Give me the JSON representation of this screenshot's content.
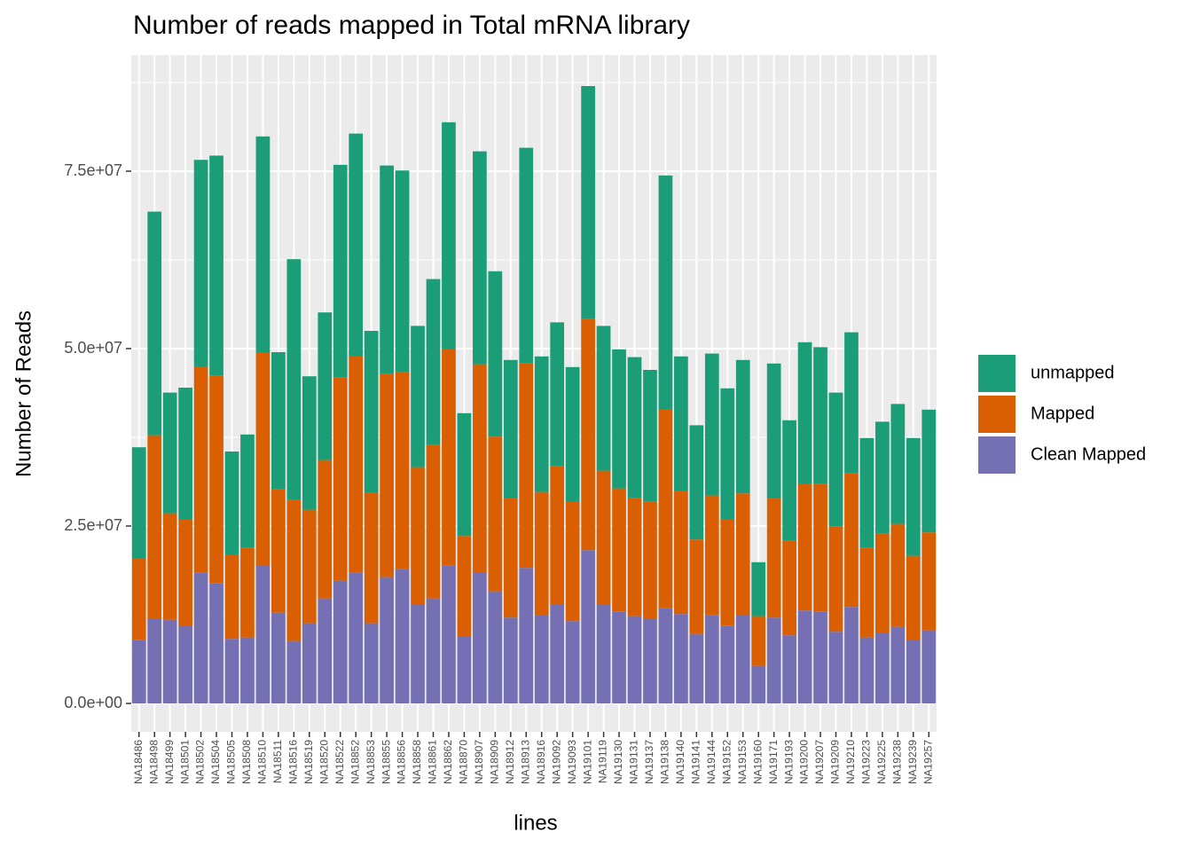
{
  "chart_data": {
    "type": "stacked_bar",
    "title": "Number of reads mapped in Total mRNA library",
    "x_label": "lines",
    "y_label": "Number of Reads",
    "categories": [
      "NA18486",
      "NA18498",
      "NA18499",
      "NA18501",
      "NA18502",
      "NA18504",
      "NA18505",
      "NA18508",
      "NA18510",
      "NA18511",
      "NA18516",
      "NA18519",
      "NA18520",
      "NA18522",
      "NA18852",
      "NA18853",
      "NA18855",
      "NA18856",
      "NA18858",
      "NA18861",
      "NA18862",
      "NA18870",
      "NA18907",
      "NA18909",
      "NA18912",
      "NA18913",
      "NA18916",
      "NA19092",
      "NA19093",
      "NA19101",
      "NA19119",
      "NA19130",
      "NA19131",
      "NA19137",
      "NA19138",
      "NA19140",
      "NA19141",
      "NA19144",
      "NA19152",
      "NA19153",
      "NA19160",
      "NA19171",
      "NA19193",
      "NA19200",
      "NA19207",
      "NA19209",
      "NA19210",
      "NA19223",
      "NA19225",
      "NA19238",
      "NA19239",
      "NA19257"
    ],
    "series": [
      {
        "name": "Clean Mapped",
        "color": "#7570b3",
        "values": [
          8900000,
          12000000,
          11800000,
          11000000,
          18400000,
          16900000,
          9100000,
          9300000,
          19500000,
          12800000,
          8800000,
          11300000,
          14800000,
          17300000,
          18400000,
          11300000,
          17800000,
          18900000,
          14000000,
          14800000,
          19400000,
          9500000,
          18500000,
          15800000,
          12100000,
          19100000,
          12500000,
          14000000,
          11600000,
          21600000,
          14000000,
          12900000,
          12300000,
          12000000,
          13400000,
          12600000,
          9800000,
          12400000,
          10900000,
          12500000,
          5300000,
          12100000,
          9600000,
          13100000,
          12900000,
          10100000,
          13600000,
          9300000,
          10000000,
          10800000,
          9000000,
          10300000
        ]
      },
      {
        "name": "Mapped",
        "color": "#d95f02",
        "values": [
          11600000,
          25800000,
          15000000,
          15000000,
          29100000,
          29300000,
          11900000,
          12600000,
          30000000,
          17400000,
          19900000,
          16000000,
          19500000,
          28600000,
          30600000,
          18400000,
          28600000,
          27800000,
          19300000,
          21600000,
          30600000,
          14100000,
          29300000,
          21800000,
          16900000,
          28800000,
          17300000,
          19400000,
          16900000,
          32600000,
          18800000,
          17400000,
          16600000,
          16400000,
          28100000,
          17400000,
          13300000,
          16900000,
          15100000,
          17100000,
          7000000,
          16900000,
          13300000,
          17900000,
          18000000,
          14800000,
          18800000,
          12600000,
          13900000,
          14500000,
          11800000,
          13800000
        ]
      },
      {
        "name": "unmapped",
        "color": "#1b9e77",
        "values": [
          15600000,
          31500000,
          17000000,
          18500000,
          29100000,
          31000000,
          14500000,
          16000000,
          30400000,
          19300000,
          33900000,
          18800000,
          20800000,
          30000000,
          31300000,
          22800000,
          29400000,
          28400000,
          19900000,
          23400000,
          31900000,
          17300000,
          30000000,
          23300000,
          19400000,
          30400000,
          19100000,
          20300000,
          18900000,
          32800000,
          20400000,
          19600000,
          19900000,
          18600000,
          32900000,
          18900000,
          16100000,
          20000000,
          18400000,
          18800000,
          7600000,
          18900000,
          17000000,
          19900000,
          19300000,
          18900000,
          19900000,
          15500000,
          15800000,
          16900000,
          16600000,
          17300000
        ]
      }
    ],
    "ylim": [
      -4000000,
      91375000
    ],
    "yticks": [
      {
        "value": 0,
        "label": "0.0e+00"
      },
      {
        "value": 25000000,
        "label": "2.5e+07"
      },
      {
        "value": 50000000,
        "label": "5.0e+07"
      },
      {
        "value": 75000000,
        "label": "7.5e+07"
      }
    ],
    "grid": true,
    "legend": "right"
  }
}
